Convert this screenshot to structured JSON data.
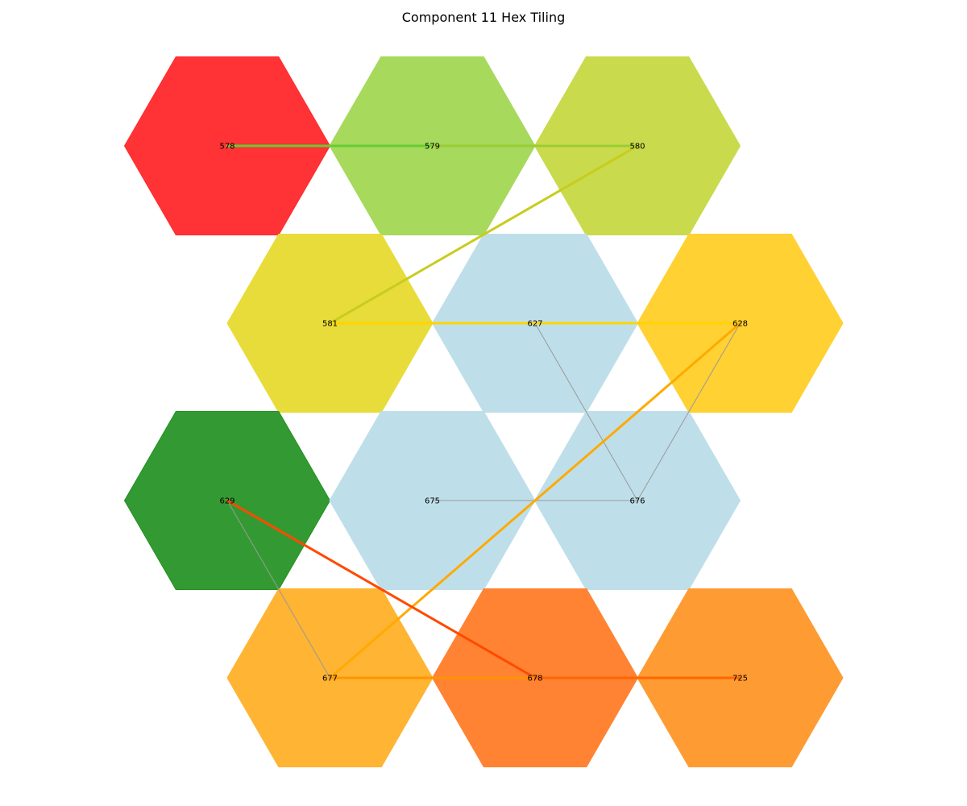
{
  "title": "Component 11 Hex Tiling",
  "hexes": [
    {
      "id": "578",
      "col": 0,
      "row": 0,
      "color": "#ff3336",
      "outline": "#ff2a2c"
    },
    {
      "id": "579",
      "col": 1,
      "row": 0,
      "color": "#a6d95c",
      "outline": "#a6d95c"
    },
    {
      "id": "580",
      "col": 2,
      "row": 0,
      "color": "#c9da4c",
      "outline": "#c9da4c"
    },
    {
      "id": "581",
      "col": 0,
      "row": 1,
      "color": "#e8dc3a",
      "outline": "#e8dc3a"
    },
    {
      "id": "627",
      "col": 1,
      "row": 1,
      "color": "#bedfea",
      "outline": "#bedfea"
    },
    {
      "id": "628",
      "col": 2,
      "row": 1,
      "color": "#ffd132",
      "outline": "#ffd132"
    },
    {
      "id": "629",
      "col": 0,
      "row": 2,
      "color": "#339a33",
      "outline": "#23901f"
    },
    {
      "id": "675",
      "col": 1,
      "row": 2,
      "color": "#bedfea",
      "outline": "#bedfea"
    },
    {
      "id": "676",
      "col": 2,
      "row": 2,
      "color": "#bedfea",
      "outline": "#bedfea"
    },
    {
      "id": "677",
      "col": 0,
      "row": 3,
      "color": "#ffb433",
      "outline": "#ffb433"
    },
    {
      "id": "678",
      "col": 1,
      "row": 3,
      "color": "#ff8333",
      "outline": "#ff8333"
    },
    {
      "id": "725",
      "col": 2,
      "row": 3,
      "color": "#ff9b33",
      "outline": "#ff9b33"
    }
  ],
  "edges": [
    {
      "from": "578",
      "to": "579",
      "color": "#66cc33",
      "weight": "heavy"
    },
    {
      "from": "579",
      "to": "580",
      "color": "#9acd32",
      "weight": "heavy"
    },
    {
      "from": "580",
      "to": "581",
      "color": "#c8cc1e",
      "weight": "heavy"
    },
    {
      "from": "581",
      "to": "627",
      "color": "#ffd400",
      "weight": "heavy"
    },
    {
      "from": "627",
      "to": "628",
      "color": "#ffd400",
      "weight": "heavy"
    },
    {
      "from": "628",
      "to": "677",
      "color": "#ffaa00",
      "weight": "heavy"
    },
    {
      "from": "629",
      "to": "678",
      "color": "#ff4a00",
      "weight": "heavy"
    },
    {
      "from": "677",
      "to": "678",
      "color": "#ff9400",
      "weight": "heavy"
    },
    {
      "from": "678",
      "to": "725",
      "color": "#ff6600",
      "weight": "heavy"
    },
    {
      "from": "627",
      "to": "676",
      "color": "#999999",
      "weight": "thin"
    },
    {
      "from": "628",
      "to": "676",
      "color": "#999999",
      "weight": "thin"
    },
    {
      "from": "675",
      "to": "676",
      "color": "#999999",
      "weight": "thin"
    },
    {
      "from": "629",
      "to": "677",
      "color": "#999999",
      "weight": "thin"
    }
  ]
}
